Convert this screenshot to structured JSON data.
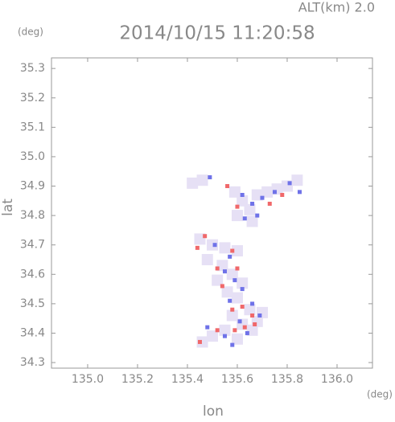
{
  "chart_data": {
    "type": "scatter",
    "title": "2014/10/15 11:20:58",
    "subtitle": "ALT(km) 2.0",
    "x_label": "lon",
    "y_label": "lat",
    "x_unit": "(deg)",
    "y_unit": "(deg)",
    "xlim": [
      134.855,
      136.142
    ],
    "ylim": [
      34.281,
      35.336
    ],
    "xticks": [
      {
        "value": 135,
        "label": "135.0"
      },
      135.2,
      135.4,
      135.6,
      135.8,
      {
        "value": 136,
        "label": "136.0"
      }
    ],
    "yticks": [
      34.3,
      34.4,
      34.5,
      34.6,
      34.7,
      34.8,
      34.9,
      {
        "value": 35,
        "label": "35.0"
      },
      35.1,
      35.2,
      35.3
    ],
    "series": [
      {
        "color": "#e6e0f5",
        "x": [
          135.42,
          135.46,
          135.59,
          135.62,
          135.65,
          135.68,
          135.72,
          135.76,
          135.8,
          135.84,
          135.6,
          135.66,
          135.45,
          135.5,
          135.55,
          135.6,
          135.48,
          135.54,
          135.58,
          135.62,
          135.52,
          135.56,
          135.6,
          135.65,
          135.7,
          135.58,
          135.62,
          135.66,
          135.55,
          135.5,
          135.46,
          135.6,
          135.68
        ],
        "values": [
          34.91,
          34.92,
          34.88,
          34.85,
          34.82,
          34.87,
          34.88,
          34.89,
          34.9,
          34.92,
          34.8,
          34.78,
          34.72,
          34.7,
          34.69,
          34.68,
          34.65,
          34.63,
          34.6,
          34.57,
          34.58,
          34.54,
          34.52,
          34.48,
          34.47,
          34.46,
          34.43,
          34.41,
          34.41,
          34.39,
          34.37,
          34.38,
          34.44
        ]
      },
      {
        "color": "#6f72e8",
        "x": [
          135.49,
          135.62,
          135.66,
          135.7,
          135.75,
          135.81,
          135.85,
          135.63,
          135.68,
          135.51,
          135.57,
          135.55,
          135.59,
          135.62,
          135.57,
          135.66,
          135.69,
          135.61,
          135.64,
          135.55,
          135.58,
          135.48
        ],
        "values": [
          34.93,
          34.87,
          34.84,
          34.86,
          34.88,
          34.91,
          34.88,
          34.79,
          34.8,
          34.7,
          34.66,
          34.61,
          34.58,
          34.55,
          34.51,
          34.5,
          34.46,
          34.44,
          34.4,
          34.39,
          34.36,
          34.42
        ]
      },
      {
        "color": "#f0686a",
        "x": [
          135.56,
          135.73,
          135.78,
          135.6,
          135.47,
          135.44,
          135.58,
          135.52,
          135.6,
          135.54,
          135.62,
          135.58,
          135.66,
          135.63,
          135.59,
          135.52,
          135.45,
          135.67
        ],
        "values": [
          34.9,
          34.84,
          34.87,
          34.83,
          34.73,
          34.69,
          34.68,
          34.62,
          34.62,
          34.56,
          34.49,
          34.48,
          34.46,
          34.42,
          34.41,
          34.41,
          34.37,
          34.43
        ]
      }
    ]
  }
}
